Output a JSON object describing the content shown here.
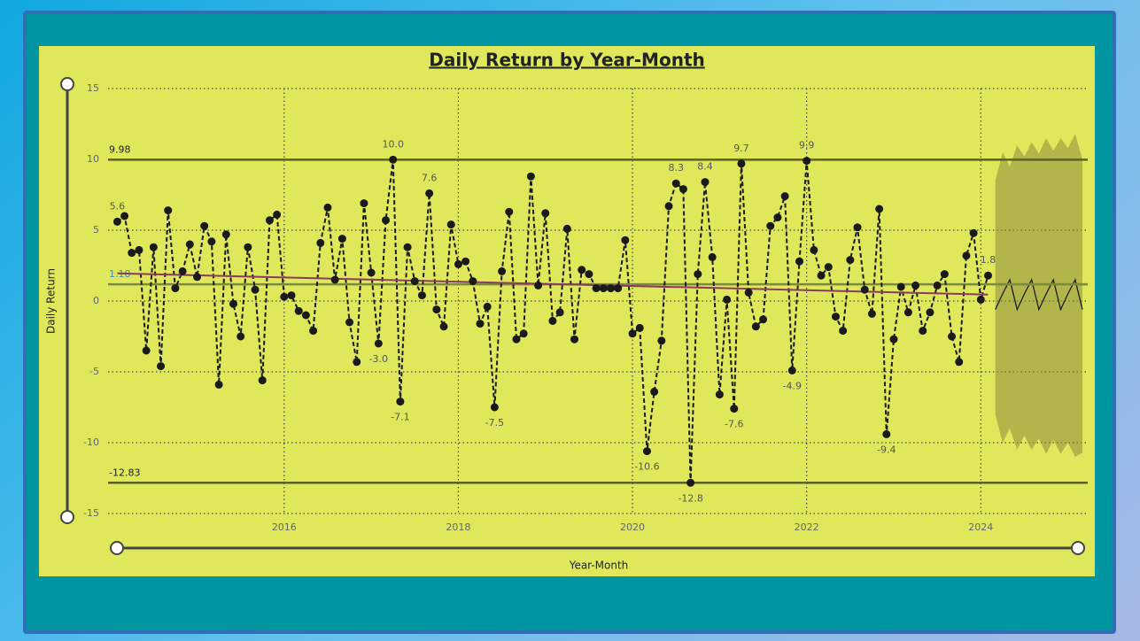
{
  "chart_data": {
    "type": "line",
    "title": "Daily Return by Year-Month",
    "x_label": "Year-Month",
    "y_label": "Daily Return",
    "xlim": [
      "2013-12",
      "2025-03"
    ],
    "xticks": [
      {
        "value": "2016-01",
        "label": "2016"
      },
      {
        "value": "2018-01",
        "label": "2018"
      },
      {
        "value": "2020-01",
        "label": "2020"
      },
      {
        "value": "2022-01",
        "label": "2022"
      },
      {
        "value": "2024-01",
        "label": "2024"
      }
    ],
    "ylim": [
      -15,
      15
    ],
    "yticks": [
      -15,
      -10,
      -5,
      0,
      5,
      10,
      15
    ],
    "grid": true,
    "x": [
      "2014-02",
      "2014-03",
      "2014-04",
      "2014-05",
      "2014-06",
      "2014-07",
      "2014-08",
      "2014-09",
      "2014-10",
      "2014-11",
      "2014-12",
      "2015-01",
      "2015-02",
      "2015-03",
      "2015-04",
      "2015-05",
      "2015-06",
      "2015-07",
      "2015-08",
      "2015-09",
      "2015-10",
      "2015-11",
      "2015-12",
      "2016-01",
      "2016-02",
      "2016-03",
      "2016-04",
      "2016-05",
      "2016-06",
      "2016-07",
      "2016-08",
      "2016-09",
      "2016-10",
      "2016-11",
      "2016-12",
      "2017-01",
      "2017-02",
      "2017-03",
      "2017-04",
      "2017-05",
      "2017-06",
      "2017-07",
      "2017-08",
      "2017-09",
      "2017-10",
      "2017-11",
      "2017-12",
      "2018-01",
      "2018-02",
      "2018-03",
      "2018-04",
      "2018-05",
      "2018-06",
      "2018-07",
      "2018-08",
      "2018-09",
      "2018-10",
      "2018-11",
      "2018-12",
      "2019-01",
      "2019-02",
      "2019-03",
      "2019-04",
      "2019-05",
      "2019-06",
      "2019-07",
      "2019-08",
      "2019-09",
      "2019-10",
      "2019-11",
      "2019-12",
      "2020-01",
      "2020-02",
      "2020-03",
      "2020-04",
      "2020-05",
      "2020-06",
      "2020-07",
      "2020-08",
      "2020-09",
      "2020-10",
      "2020-11",
      "2020-12",
      "2021-01",
      "2021-02",
      "2021-03",
      "2021-04",
      "2021-05",
      "2021-06",
      "2021-07",
      "2021-08",
      "2021-09",
      "2021-10",
      "2021-11",
      "2021-12",
      "2022-01",
      "2022-02",
      "2022-03",
      "2022-04",
      "2022-05",
      "2022-06",
      "2022-07",
      "2022-08",
      "2022-09",
      "2022-10",
      "2022-11",
      "2022-12",
      "2023-01",
      "2023-02",
      "2023-03",
      "2023-04",
      "2023-05",
      "2023-06",
      "2023-07",
      "2023-08",
      "2023-09",
      "2023-10",
      "2023-11",
      "2023-12",
      "2024-01",
      "2024-02"
    ],
    "series": [
      {
        "name": "Daily Return",
        "color": "#1a1a1a",
        "values": [
          5.6,
          6.0,
          3.4,
          3.6,
          -3.5,
          3.8,
          -4.6,
          6.4,
          0.9,
          2.1,
          4.0,
          1.7,
          5.3,
          4.2,
          -5.9,
          4.7,
          -0.2,
          -2.5,
          3.8,
          0.8,
          -5.6,
          5.7,
          6.1,
          0.3,
          0.4,
          -0.7,
          -1.0,
          -2.1,
          4.1,
          6.6,
          1.5,
          4.4,
          -1.5,
          -4.3,
          6.9,
          2.0,
          -3.0,
          5.7,
          9.98,
          -7.1,
          3.8,
          1.4,
          0.4,
          7.6,
          -0.6,
          -1.8,
          5.4,
          2.6,
          2.8,
          1.4,
          -1.6,
          -0.4,
          -7.5,
          2.1,
          6.3,
          -2.7,
          -2.3,
          8.8,
          1.1,
          6.2,
          -1.4,
          -0.8,
          5.1,
          -2.7,
          2.2,
          1.9,
          0.9,
          0.9,
          0.9,
          0.9,
          4.3,
          -2.3,
          -1.9,
          -10.6,
          -6.4,
          -2.8,
          6.7,
          8.3,
          7.9,
          -12.83,
          1.9,
          8.4,
          3.1,
          -6.6,
          0.1,
          -7.6,
          9.7,
          0.6,
          -1.8,
          -1.3,
          5.3,
          5.9,
          7.4,
          -4.9,
          2.8,
          9.9,
          3.6,
          1.8,
          2.4,
          -1.1,
          -2.1,
          2.9,
          5.2,
          0.8,
          -0.9,
          6.5,
          -9.4,
          -2.7,
          1.0,
          -0.8,
          1.1,
          -2.1,
          -0.8,
          1.1,
          1.9,
          -2.5,
          -4.3,
          3.2,
          4.8,
          0.1,
          1.8
        ],
        "value_labels": [
          "5.6",
          null,
          null,
          null,
          null,
          null,
          null,
          null,
          null,
          null,
          null,
          null,
          null,
          null,
          null,
          null,
          null,
          null,
          null,
          null,
          null,
          null,
          null,
          null,
          null,
          null,
          null,
          null,
          null,
          null,
          null,
          null,
          null,
          null,
          null,
          null,
          "-3.0",
          null,
          "10.0",
          "-7.1",
          null,
          null,
          null,
          "7.6",
          null,
          null,
          null,
          null,
          null,
          null,
          null,
          null,
          "-7.5",
          null,
          null,
          null,
          null,
          null,
          null,
          null,
          null,
          null,
          null,
          null,
          null,
          null,
          null,
          null,
          null,
          null,
          null,
          null,
          null,
          "-10.6",
          null,
          null,
          null,
          "8.3",
          null,
          "-12.8",
          null,
          "8.4",
          null,
          null,
          null,
          "-7.6",
          "9.7",
          null,
          null,
          null,
          null,
          null,
          null,
          "-4.9",
          null,
          "9.9",
          null,
          null,
          null,
          null,
          null,
          null,
          null,
          null,
          null,
          null,
          "-9.4",
          null,
          null,
          null,
          null,
          null,
          null,
          null,
          null,
          null,
          null,
          null,
          null,
          null,
          "1.8"
        ]
      }
    ],
    "trend_line": {
      "x": [
        "2014-02",
        "2024-02"
      ],
      "values": [
        1.95,
        0.45
      ],
      "color": "#8b3a62"
    },
    "reference_lines": [
      {
        "value": 9.98,
        "color": "#5f6128"
      },
      {
        "value": -12.83,
        "color": "#5f6128"
      },
      {
        "value": 1.18,
        "color": "#7d8a3a",
        "label_color": "#3c8dbc"
      }
    ],
    "forecast": {
      "x": [
        "2024-03",
        "2024-04",
        "2024-05",
        "2024-06",
        "2024-07",
        "2024-08",
        "2024-09",
        "2024-10",
        "2024-11",
        "2024-12",
        "2025-01",
        "2025-02",
        "2025-03"
      ],
      "values": [
        -0.6,
        0.5,
        1.5,
        -0.6,
        0.5,
        1.5,
        -0.6,
        0.5,
        1.5,
        -0.6,
        0.5,
        1.5,
        -0.6
      ],
      "upper": [
        8.5,
        10.5,
        9.5,
        11.0,
        10.2,
        11.2,
        10.4,
        11.5,
        10.6,
        11.5,
        10.8,
        11.8,
        10.0
      ],
      "lower": [
        -8.0,
        -10.0,
        -9.0,
        -10.5,
        -9.5,
        -10.5,
        -9.7,
        -10.8,
        -9.8,
        -10.8,
        -10.0,
        -11.0,
        -10.7
      ],
      "band_color": "#8c8c3c",
      "color": "#1a1a1a"
    }
  }
}
